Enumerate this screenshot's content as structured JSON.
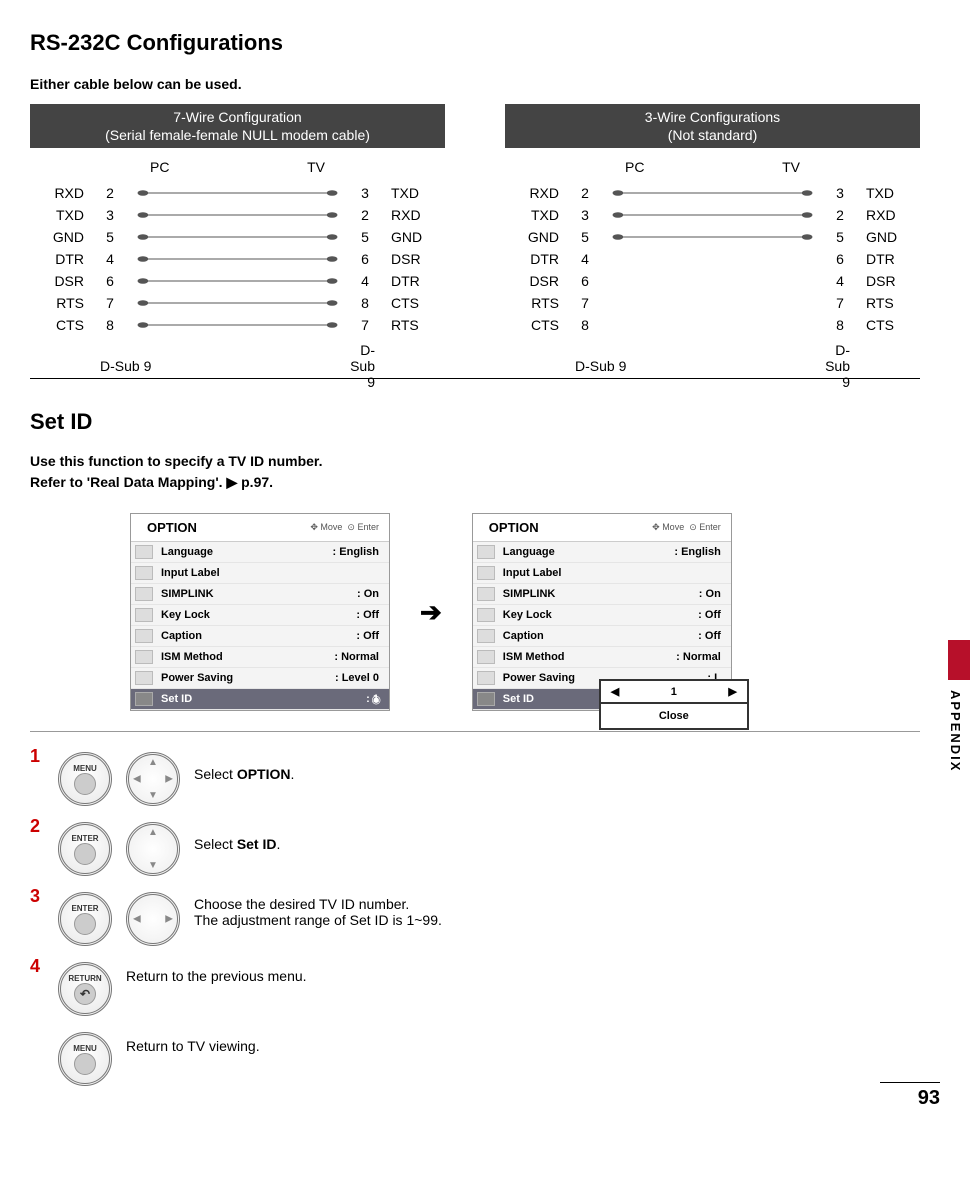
{
  "title": "RS-232C Configurations",
  "intro": "Either cable below can be used.",
  "cable7": {
    "title_l1": "7-Wire Configuration",
    "title_l2": "(Serial female-female NULL modem cable)",
    "head_pc": "PC",
    "head_tv": "TV",
    "foot_l": "D-Sub 9",
    "foot_r": "D-Sub 9",
    "rows": [
      {
        "sl": "RXD",
        "nl": "2",
        "nr": "3",
        "sr": "TXD",
        "wired": true
      },
      {
        "sl": "TXD",
        "nl": "3",
        "nr": "2",
        "sr": "RXD",
        "wired": true
      },
      {
        "sl": "GND",
        "nl": "5",
        "nr": "5",
        "sr": "GND",
        "wired": true
      },
      {
        "sl": "DTR",
        "nl": "4",
        "nr": "6",
        "sr": "DSR",
        "wired": true
      },
      {
        "sl": "DSR",
        "nl": "6",
        "nr": "4",
        "sr": "DTR",
        "wired": true
      },
      {
        "sl": "RTS",
        "nl": "7",
        "nr": "8",
        "sr": "CTS",
        "wired": true
      },
      {
        "sl": "CTS",
        "nl": "8",
        "nr": "7",
        "sr": "RTS",
        "wired": true
      }
    ]
  },
  "cable3": {
    "title_l1": "3-Wire Configurations",
    "title_l2": "(Not standard)",
    "head_pc": "PC",
    "head_tv": "TV",
    "foot_l": "D-Sub 9",
    "foot_r": "D-Sub 9",
    "rows": [
      {
        "sl": "RXD",
        "nl": "2",
        "nr": "3",
        "sr": "TXD",
        "wired": true
      },
      {
        "sl": "TXD",
        "nl": "3",
        "nr": "2",
        "sr": "RXD",
        "wired": true
      },
      {
        "sl": "GND",
        "nl": "5",
        "nr": "5",
        "sr": "GND",
        "wired": true
      },
      {
        "sl": "DTR",
        "nl": "4",
        "nr": "6",
        "sr": "DTR",
        "wired": false
      },
      {
        "sl": "DSR",
        "nl": "6",
        "nr": "4",
        "sr": "DSR",
        "wired": false
      },
      {
        "sl": "RTS",
        "nl": "7",
        "nr": "7",
        "sr": "RTS",
        "wired": false
      },
      {
        "sl": "CTS",
        "nl": "8",
        "nr": "8",
        "sr": "CTS",
        "wired": false
      }
    ]
  },
  "setid": {
    "heading": "Set ID",
    "line1": "Use this function to specify a TV ID number.",
    "line2_a": "Refer to 'Real Data Mapping'. ▶ ",
    "line2_b": "p.97",
    "line2_c": "."
  },
  "menu": {
    "title": "OPTION",
    "hint_move": "Move",
    "hint_enter": "Enter",
    "rows": [
      {
        "label": "Language",
        "value": "English"
      },
      {
        "label": "Input Label",
        "value": ""
      },
      {
        "label": "SIMPLINK",
        "value": "On"
      },
      {
        "label": "Key Lock",
        "value": "Off"
      },
      {
        "label": "Caption",
        "value": "Off"
      },
      {
        "label": "ISM Method",
        "value": "Normal"
      },
      {
        "label": "Power Saving",
        "value": "Level 0"
      },
      {
        "label": "Set ID",
        "value": "1"
      }
    ],
    "arrow": "➔",
    "popup_val": "1",
    "popup_left": "◀",
    "popup_right": "▶",
    "popup_close": "Close",
    "power_saving_trunc": "L"
  },
  "steps": {
    "s1_btn": "MENU",
    "s1_a": "Select ",
    "s1_b": "OPTION",
    "s1_c": ".",
    "s2_btn": "ENTER",
    "s2_a": "Select ",
    "s2_b": "Set ID",
    "s2_c": ".",
    "s3_btn": "ENTER",
    "s3_a": "Choose the desired TV ID number.",
    "s3_b": "The adjustment range of Set ID is 1~99.",
    "s4_btn": "RETURN",
    "s4_a": "Return to the previous menu.",
    "s5_btn": "MENU",
    "s5_a": "Return to TV viewing."
  },
  "side_label": "APPENDIX",
  "page_number": "93"
}
